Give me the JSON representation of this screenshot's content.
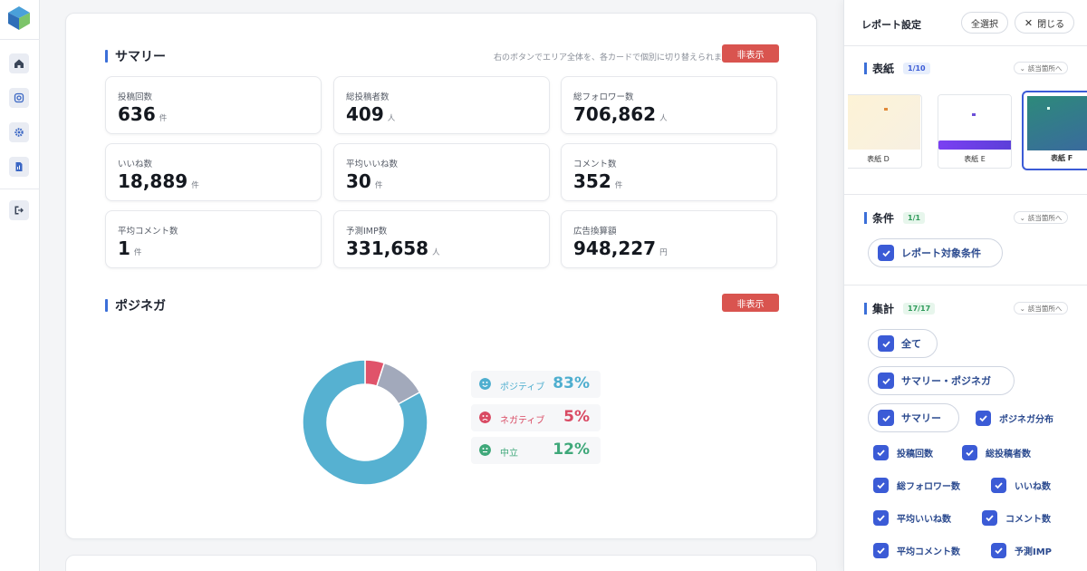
{
  "sidebar": {
    "icons": [
      "home-icon",
      "instagram-icon",
      "gear-icon",
      "report-icon",
      "logout-icon"
    ]
  },
  "summary": {
    "title": "サマリー",
    "hint": "右のボタンでエリア全体を、各カードで個別に切り替えられます",
    "hide_label": "非表示",
    "stats": [
      {
        "label": "投稿回数",
        "value": "636",
        "unit": "件"
      },
      {
        "label": "総投稿者数",
        "value": "409",
        "unit": "人"
      },
      {
        "label": "総フォロワー数",
        "value": "706,862",
        "unit": "人"
      },
      {
        "label": "いいね数",
        "value": "18,889",
        "unit": "件"
      },
      {
        "label": "平均いいね数",
        "value": "30",
        "unit": "件"
      },
      {
        "label": "コメント数",
        "value": "352",
        "unit": "件"
      },
      {
        "label": "平均コメント数",
        "value": "1",
        "unit": "件"
      },
      {
        "label": "予測IMP数",
        "value": "331,658",
        "unit": "人"
      },
      {
        "label": "広告換算額",
        "value": "948,227",
        "unit": "円"
      }
    ]
  },
  "posinega": {
    "title": "ポジネガ",
    "hide_label": "非表示",
    "legend": [
      {
        "name": "ポジティブ",
        "pct": "83%",
        "color": "#4eaecf"
      },
      {
        "name": "ネガティブ",
        "pct": "5%",
        "color": "#d94a63"
      },
      {
        "name": "中立",
        "pct": "12%",
        "color": "#3fa87a"
      }
    ]
  },
  "chart_data": {
    "type": "pie",
    "categories": [
      "ポジティブ",
      "ネガティブ",
      "中立"
    ],
    "values": [
      83,
      5,
      12
    ],
    "colors": [
      "#56b1d1",
      "#e0536a",
      "#a2a9bb"
    ]
  },
  "panel": {
    "title": "レポート設定",
    "select_all": "全選択",
    "close": "閉じる",
    "jump_label": "該当箇所へ",
    "cover": {
      "title": "表紙",
      "badge": "1/10",
      "thumbs": [
        "表紙 D",
        "表紙 E",
        "表紙 F"
      ]
    },
    "conditions": {
      "title": "条件",
      "badge": "1/1",
      "chip": "レポート対象条件"
    },
    "aggregate": {
      "title": "集計",
      "badge": "17/17",
      "all": "全て",
      "summary_posinega": "サマリー・ポジネガ",
      "summary": "サマリー",
      "posinega_dist": "ポジネガ分布",
      "items": [
        "投稿回数",
        "総投稿者数",
        "総フォロワー数",
        "いいね数",
        "平均いいね数",
        "コメント数",
        "平均コメント数",
        "予測IMP"
      ]
    }
  },
  "colors": {
    "accent": "#3b6fd8",
    "danger": "#d9544f",
    "checkbox": "#3b5bd6"
  }
}
